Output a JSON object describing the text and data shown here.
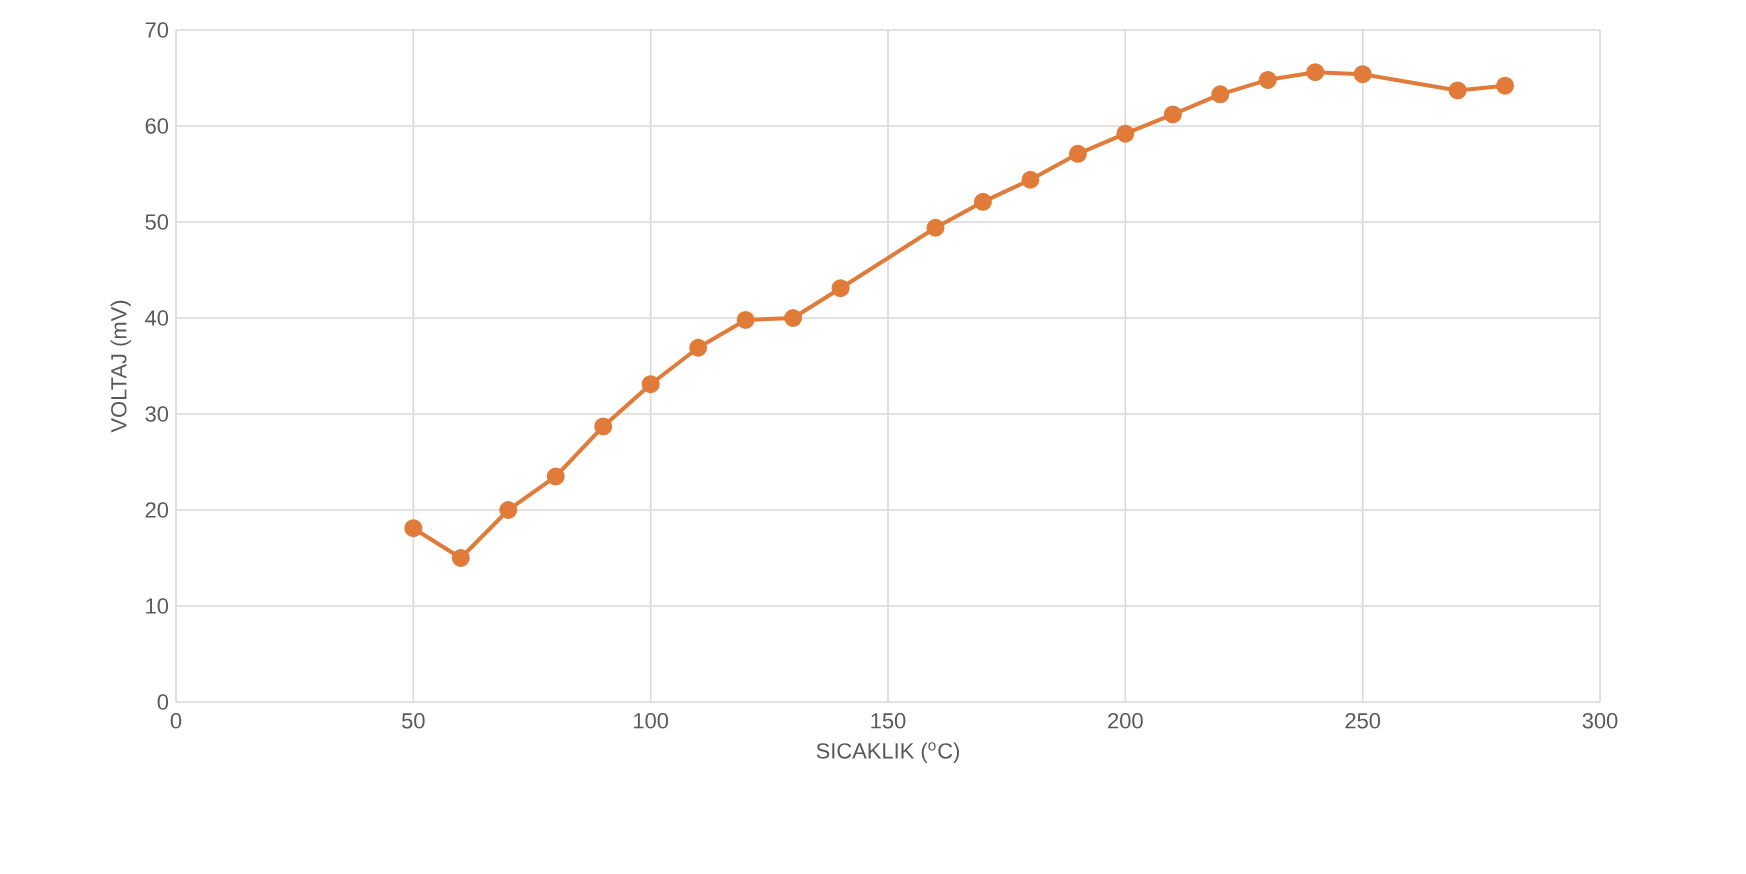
{
  "chart_data": {
    "type": "line",
    "xlabel": "SICAKLIK ($^{o}$C)",
    "ylabel": "VOLTAJ (mV)",
    "x": [
      50,
      60,
      70,
      80,
      90,
      100,
      110,
      120,
      130,
      140,
      160,
      170,
      180,
      190,
      200,
      210,
      220,
      230,
      240,
      250,
      270,
      280
    ],
    "series": [
      {
        "color": "#e07b39",
        "values": [
          18.1,
          15.0,
          20.0,
          23.5,
          28.7,
          33.1,
          36.9,
          39.8,
          40.0,
          43.1,
          49.4,
          52.1,
          54.4,
          57.1,
          59.2,
          61.2,
          63.3,
          64.8,
          65.6,
          65.4,
          63.7,
          64.2
        ]
      }
    ],
    "xlim": [
      0,
      300
    ],
    "xticks": [
      0,
      50,
      100,
      150,
      200,
      250,
      300
    ],
    "ylim": [
      0,
      70
    ],
    "yticks": [
      0,
      10,
      20,
      30,
      40,
      50,
      60,
      70
    ],
    "grid": true,
    "marker": "circle",
    "line_style": "solid"
  }
}
